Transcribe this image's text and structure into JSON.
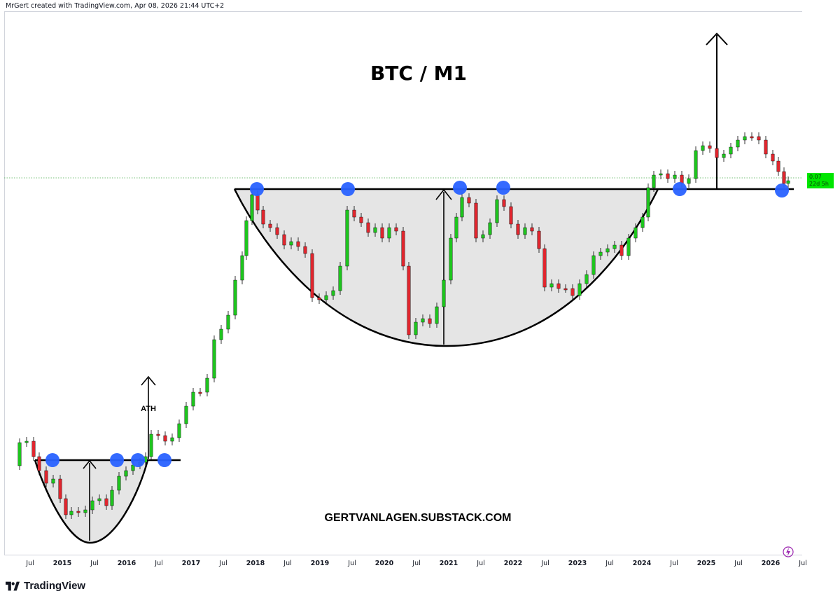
{
  "header": {
    "credit": "MrGert created with TradingView.com, Apr 08, 2026 21:44 UTC+2"
  },
  "footer": {
    "brand": "TradingView"
  },
  "price_tag": {
    "value": "0.07",
    "countdown": "22d 5h",
    "color": "#00e600"
  },
  "colors": {
    "up": "#1ec51e",
    "down": "#e0262e",
    "marker": "#2962ff",
    "shade": "#e5e5e5",
    "line": "#000000"
  },
  "icons": [
    "tradingview-logo-icon",
    "lightning-icon"
  ],
  "chart_data": {
    "type": "candlestick",
    "title": "BTC / M1",
    "annotations": [
      "ATH",
      "GERTVANLAGEN.SUBSTACK.COM"
    ],
    "x_axis_labels": [
      "Jul",
      "2015",
      "Jul",
      "2016",
      "Jul",
      "2017",
      "Jul",
      "2018",
      "Jul",
      "2019",
      "Jul",
      "2020",
      "Jul",
      "2021",
      "Jul",
      "2022",
      "Jul",
      "2023",
      "Jul",
      "2024",
      "Jul",
      "2025",
      "Jul",
      "2026",
      "Jul"
    ],
    "y_axis": "unlabeled (normalized ratio)",
    "grid": false,
    "patterns": [
      "cup-and-handle 2014-2016",
      "cup-and-handle 2018-2024"
    ]
  }
}
